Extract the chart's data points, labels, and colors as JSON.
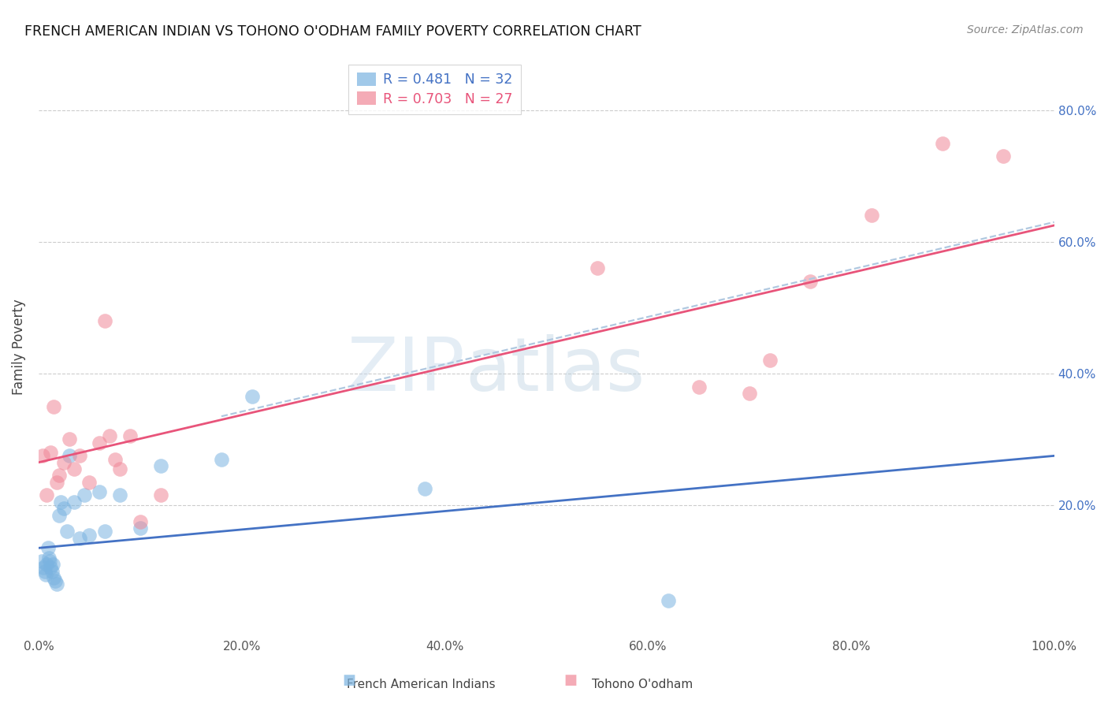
{
  "title": "FRENCH AMERICAN INDIAN VS TOHONO O'ODHAM FAMILY POVERTY CORRELATION CHART",
  "source": "Source: ZipAtlas.com",
  "ylabel": "Family Poverty",
  "xlim": [
    0.0,
    1.0
  ],
  "ylim": [
    0.0,
    0.88
  ],
  "xticks": [
    0.0,
    0.2,
    0.4,
    0.6,
    0.8,
    1.0
  ],
  "xtick_labels": [
    "0.0%",
    "20.0%",
    "40.0%",
    "60.0%",
    "80.0%",
    "100.0%"
  ],
  "yticks_right": [
    0.2,
    0.4,
    0.6,
    0.8
  ],
  "ytick_labels_right": [
    "20.0%",
    "40.0%",
    "60.0%",
    "80.0%"
  ],
  "watermark_line1": "ZIP",
  "watermark_line2": "atlas",
  "legend_r1": "R = 0.481",
  "legend_n1": "N = 32",
  "legend_r2": "R = 0.703",
  "legend_n2": "N = 27",
  "blue_color": "#7ab3e0",
  "pink_color": "#f08898",
  "blue_line_color": "#4472c4",
  "pink_line_color": "#e8547a",
  "dashed_line_color": "#b0c8e0",
  "label_blue": "French American Indians",
  "label_pink": "Tohono O'odham",
  "blue_scatter_x": [
    0.003,
    0.005,
    0.006,
    0.007,
    0.008,
    0.009,
    0.01,
    0.011,
    0.012,
    0.013,
    0.014,
    0.015,
    0.016,
    0.018,
    0.02,
    0.022,
    0.025,
    0.028,
    0.03,
    0.035,
    0.04,
    0.045,
    0.05,
    0.06,
    0.065,
    0.08,
    0.1,
    0.12,
    0.18,
    0.21,
    0.38,
    0.62
  ],
  "blue_scatter_y": [
    0.115,
    0.105,
    0.1,
    0.095,
    0.11,
    0.135,
    0.12,
    0.115,
    0.105,
    0.1,
    0.11,
    0.09,
    0.085,
    0.08,
    0.185,
    0.205,
    0.195,
    0.16,
    0.275,
    0.205,
    0.15,
    0.215,
    0.155,
    0.22,
    0.16,
    0.215,
    0.165,
    0.26,
    0.27,
    0.365,
    0.225,
    0.055
  ],
  "pink_scatter_x": [
    0.004,
    0.008,
    0.012,
    0.015,
    0.018,
    0.02,
    0.025,
    0.03,
    0.035,
    0.04,
    0.05,
    0.06,
    0.065,
    0.07,
    0.075,
    0.08,
    0.09,
    0.1,
    0.12,
    0.55,
    0.65,
    0.7,
    0.72,
    0.76,
    0.82,
    0.89,
    0.95
  ],
  "pink_scatter_y": [
    0.275,
    0.215,
    0.28,
    0.35,
    0.235,
    0.245,
    0.265,
    0.3,
    0.255,
    0.275,
    0.235,
    0.295,
    0.48,
    0.305,
    0.27,
    0.255,
    0.305,
    0.175,
    0.215,
    0.56,
    0.38,
    0.37,
    0.42,
    0.54,
    0.64,
    0.75,
    0.73
  ],
  "blue_line_x": [
    0.0,
    1.0
  ],
  "blue_line_y": [
    0.135,
    0.275
  ],
  "pink_line_x": [
    0.0,
    1.0
  ],
  "pink_line_y": [
    0.265,
    0.625
  ],
  "dashed_line_x": [
    0.18,
    1.0
  ],
  "dashed_line_y": [
    0.335,
    0.63
  ]
}
